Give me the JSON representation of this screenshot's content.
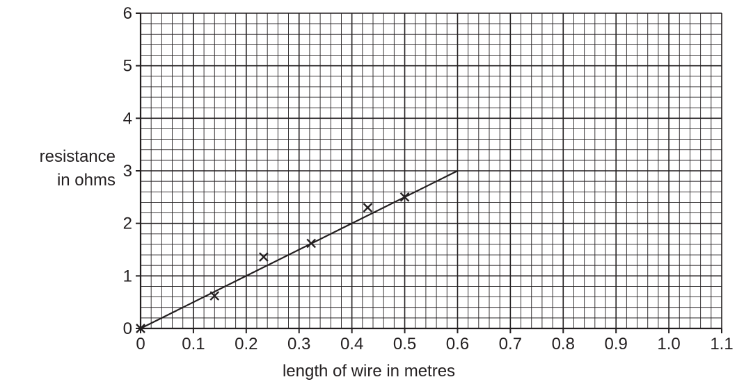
{
  "chart_data": {
    "type": "scatter",
    "xlabel": "length of wire in metres",
    "ylabel_lines": [
      "resistance",
      "in ohms"
    ],
    "xlim": [
      0,
      1.1
    ],
    "ylim": [
      0,
      6
    ],
    "x_ticks": [
      0,
      0.1,
      0.2,
      0.3,
      0.4,
      0.5,
      0.6,
      0.7,
      0.8,
      0.9,
      1.0,
      1.1
    ],
    "x_tick_labels": [
      "0",
      "0.1",
      "0.2",
      "0.3",
      "0.4",
      "0.5",
      "0.6",
      "0.7",
      "0.8",
      "0.9",
      "1.0",
      "1.1"
    ],
    "y_ticks": [
      0,
      1,
      2,
      3,
      4,
      5,
      6
    ],
    "y_tick_labels": [
      "0",
      "1",
      "2",
      "3",
      "4",
      "5",
      "6"
    ],
    "grid": true,
    "minor_divisions": 5,
    "points": [
      {
        "x": 0,
        "y": 0
      },
      {
        "x": 0.14,
        "y": 0.62
      },
      {
        "x": 0.233,
        "y": 1.36
      },
      {
        "x": 0.323,
        "y": 1.62
      },
      {
        "x": 0.43,
        "y": 2.3
      },
      {
        "x": 0.5,
        "y": 2.5
      }
    ],
    "best_fit_line": {
      "x": [
        0,
        0.6
      ],
      "y": [
        0,
        3
      ]
    },
    "colors": {
      "ink": "#231f20",
      "background": "#ffffff"
    }
  }
}
